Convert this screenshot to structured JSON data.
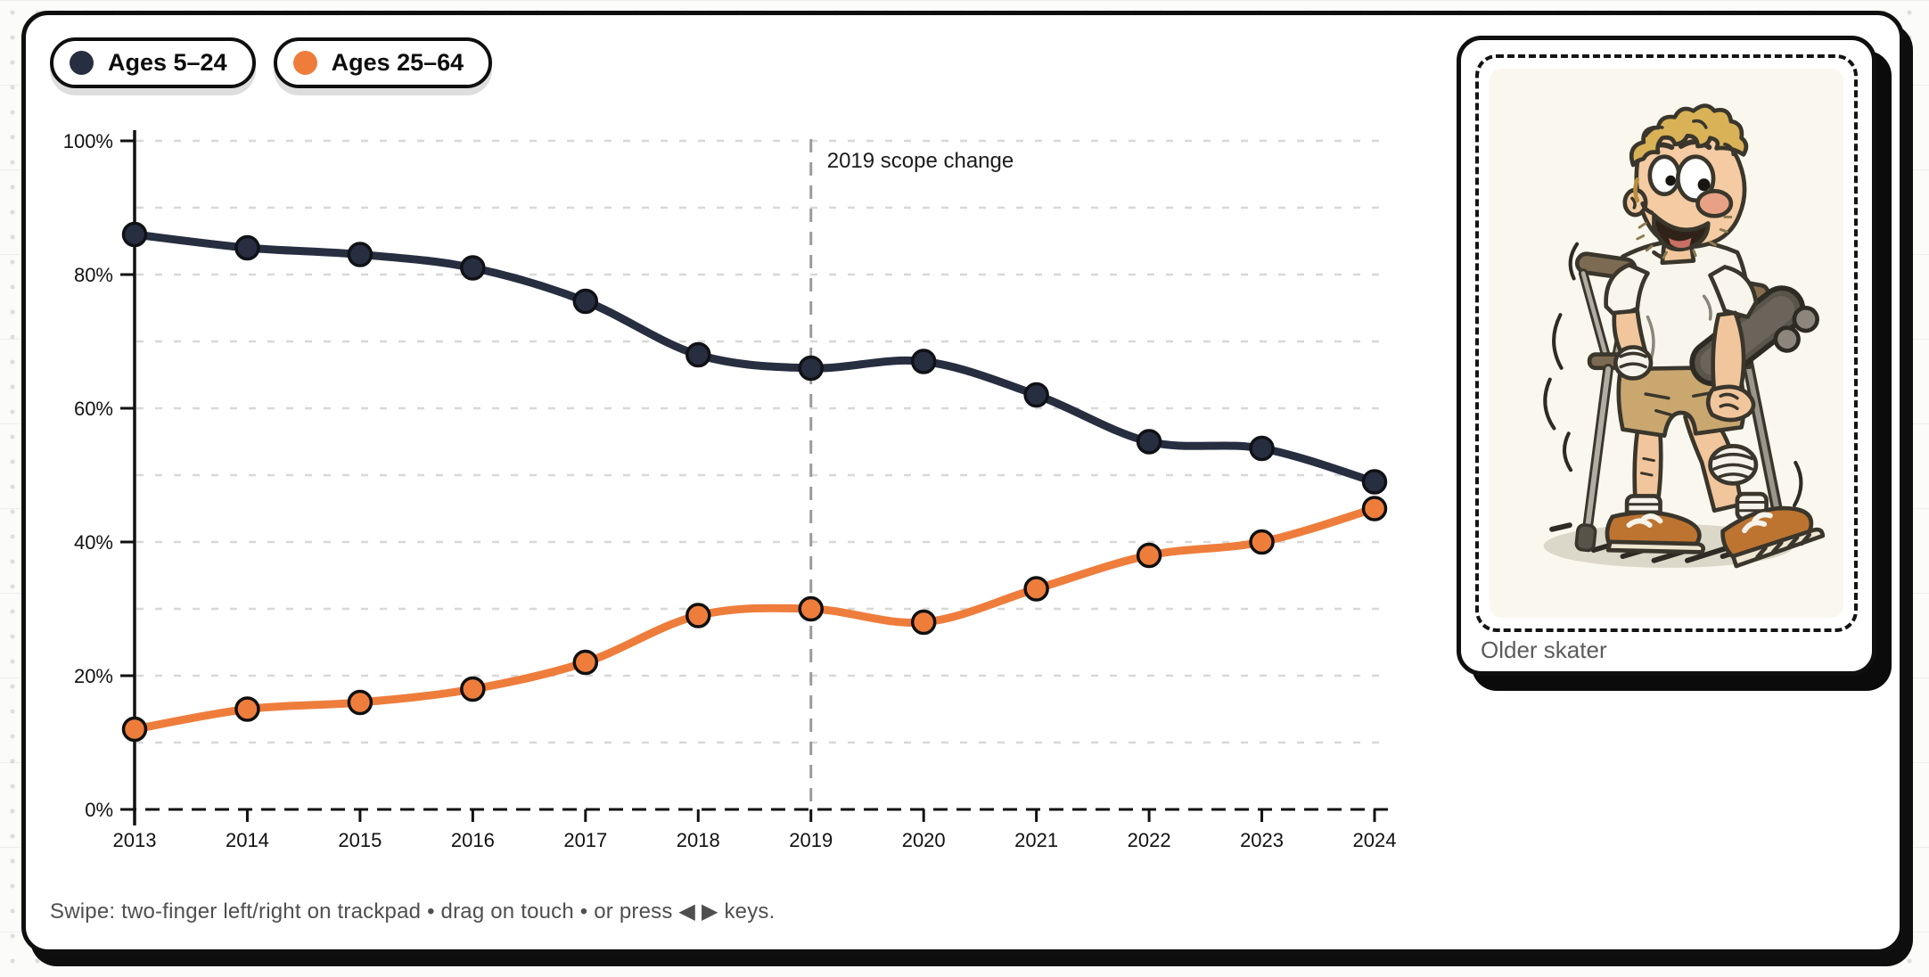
{
  "footer": {
    "hint": "Swipe: two-finger left/right on trackpad • drag on touch • or press ◀ ▶ keys."
  },
  "card": {
    "caption": "Older skater"
  },
  "chart_data": {
    "type": "line",
    "x": [
      2013,
      2014,
      2015,
      2016,
      2017,
      2018,
      2019,
      2020,
      2021,
      2022,
      2023,
      2024
    ],
    "series": [
      {
        "name": "Ages 5–24",
        "color": "#272e40",
        "point_stroke": "#101216",
        "values": [
          86,
          84,
          83,
          81,
          76,
          68,
          66,
          67,
          62,
          55,
          54,
          49
        ]
      },
      {
        "name": "Ages 25–64",
        "color": "#ee7d3c",
        "point_stroke": "#101010",
        "values": [
          12,
          15,
          16,
          18,
          22,
          29,
          30,
          28,
          33,
          38,
          40,
          45
        ]
      }
    ],
    "ylim": [
      0,
      100
    ],
    "grid_step": 10,
    "y_ticks": [
      {
        "v": 0,
        "label": "0%"
      },
      {
        "v": 20,
        "label": "20%"
      },
      {
        "v": 40,
        "label": "40%"
      },
      {
        "v": 60,
        "label": "60%"
      },
      {
        "v": 80,
        "label": "80%"
      },
      {
        "v": 100,
        "label": "100%"
      }
    ],
    "annotation": {
      "text": "2019 scope change",
      "year": 2019
    },
    "grid_color": "#d8d8d8",
    "axis_color": "#111111",
    "annotation_line_color": "#9b9b9b",
    "legend_position": "top-left"
  }
}
